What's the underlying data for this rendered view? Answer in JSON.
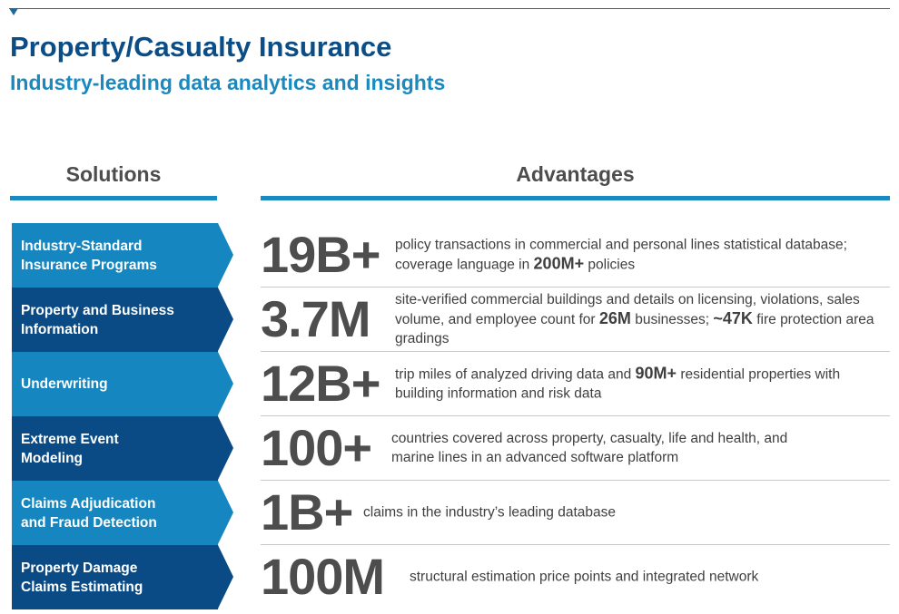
{
  "header": {
    "title": "Property/Casualty Insurance",
    "subtitle": "Industry-leading data analytics and insights"
  },
  "columns": {
    "solutions": "Solutions",
    "advantages": "Advantages"
  },
  "colors": {
    "dark_blue": "#0b4b85",
    "light_blue": "#1586c0",
    "stat_gray": "#4d4d4d"
  },
  "rows": [
    {
      "solution": "Industry-Standard\nInsurance Programs",
      "stat": "19B+",
      "desc": [
        {
          "t": "policy transactions in commercial and personal lines statistical database; coverage language in "
        },
        {
          "t": "200M+",
          "b": true
        },
        {
          "t": " policies"
        }
      ]
    },
    {
      "solution": "Property and Business\nInformation",
      "stat": "3.7M",
      "desc": [
        {
          "t": "site-verified commercial buildings and details on licensing, violations, sales volume, and employee count for "
        },
        {
          "t": "26M",
          "b": true
        },
        {
          "t": " businesses; "
        },
        {
          "t": "~47K",
          "b": true
        },
        {
          "t": " fire protection area gradings"
        }
      ]
    },
    {
      "solution": "Underwriting",
      "stat": "12B+",
      "desc": [
        {
          "t": "trip miles of analyzed driving data and "
        },
        {
          "t": "90M+",
          "b": true
        },
        {
          "t": " residential properties with building information and risk data"
        }
      ]
    },
    {
      "solution": "Extreme Event\nModeling",
      "stat": "100+",
      "desc": [
        {
          "t": "countries covered across property, casualty, life and health, and marine lines in an advanced software platform"
        }
      ]
    },
    {
      "solution": "Claims Adjudication\nand Fraud Detection",
      "stat": "1B+",
      "desc": [
        {
          "t": "claims in the industry’s leading database"
        }
      ]
    },
    {
      "solution": "Property Damage\nClaims Estimating",
      "stat": "100M",
      "desc": [
        {
          "t": "structural estimation price points and integrated network"
        }
      ]
    }
  ]
}
